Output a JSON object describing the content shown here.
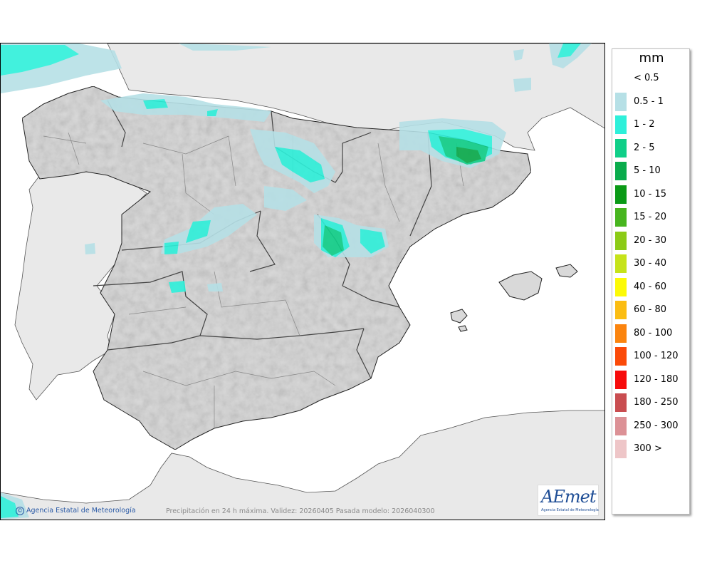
{
  "legend": {
    "unit": "mm",
    "items": [
      {
        "label": "< 0.5",
        "color": "#ffffff"
      },
      {
        "label": "0.5 - 1",
        "color": "#b6e0e6"
      },
      {
        "label": "1 - 2",
        "color": "#2ef0da"
      },
      {
        "label": "2 - 5",
        "color": "#0fcf88"
      },
      {
        "label": "5 - 10",
        "color": "#09ab4b"
      },
      {
        "label": "10 - 15",
        "color": "#0a9a16"
      },
      {
        "label": "15 - 20",
        "color": "#47b51e"
      },
      {
        "label": "20 - 30",
        "color": "#8ccb16"
      },
      {
        "label": "30 - 40",
        "color": "#c6e31a"
      },
      {
        "label": "40 - 60",
        "color": "#fcfa06"
      },
      {
        "label": "60 - 80",
        "color": "#fbbd12"
      },
      {
        "label": "80 - 100",
        "color": "#fb840e"
      },
      {
        "label": "100 - 120",
        "color": "#fb4a08"
      },
      {
        "label": "120 - 180",
        "color": "#f70b0b"
      },
      {
        "label": "180 - 250",
        "color": "#c94d50"
      },
      {
        "label": "250 - 300",
        "color": "#dc9196"
      },
      {
        "label": "300 >",
        "color": "#eec6c8"
      }
    ]
  },
  "footer": {
    "caption": "Precipitación en 24 h máxima. Validez: 20260405 Pasada modelo: 2026040300",
    "agency": "Agencia Estatal de Meteorología",
    "copyright_symbol": "©"
  },
  "logo": {
    "wordmark": "AEmet",
    "subtitle": "Agencia Estatal de Meteorología"
  },
  "colors": {
    "land": "#d9d9d9",
    "sea": "#ffffff",
    "foreign_land": "#e9e9e9",
    "borders": "#333333"
  }
}
